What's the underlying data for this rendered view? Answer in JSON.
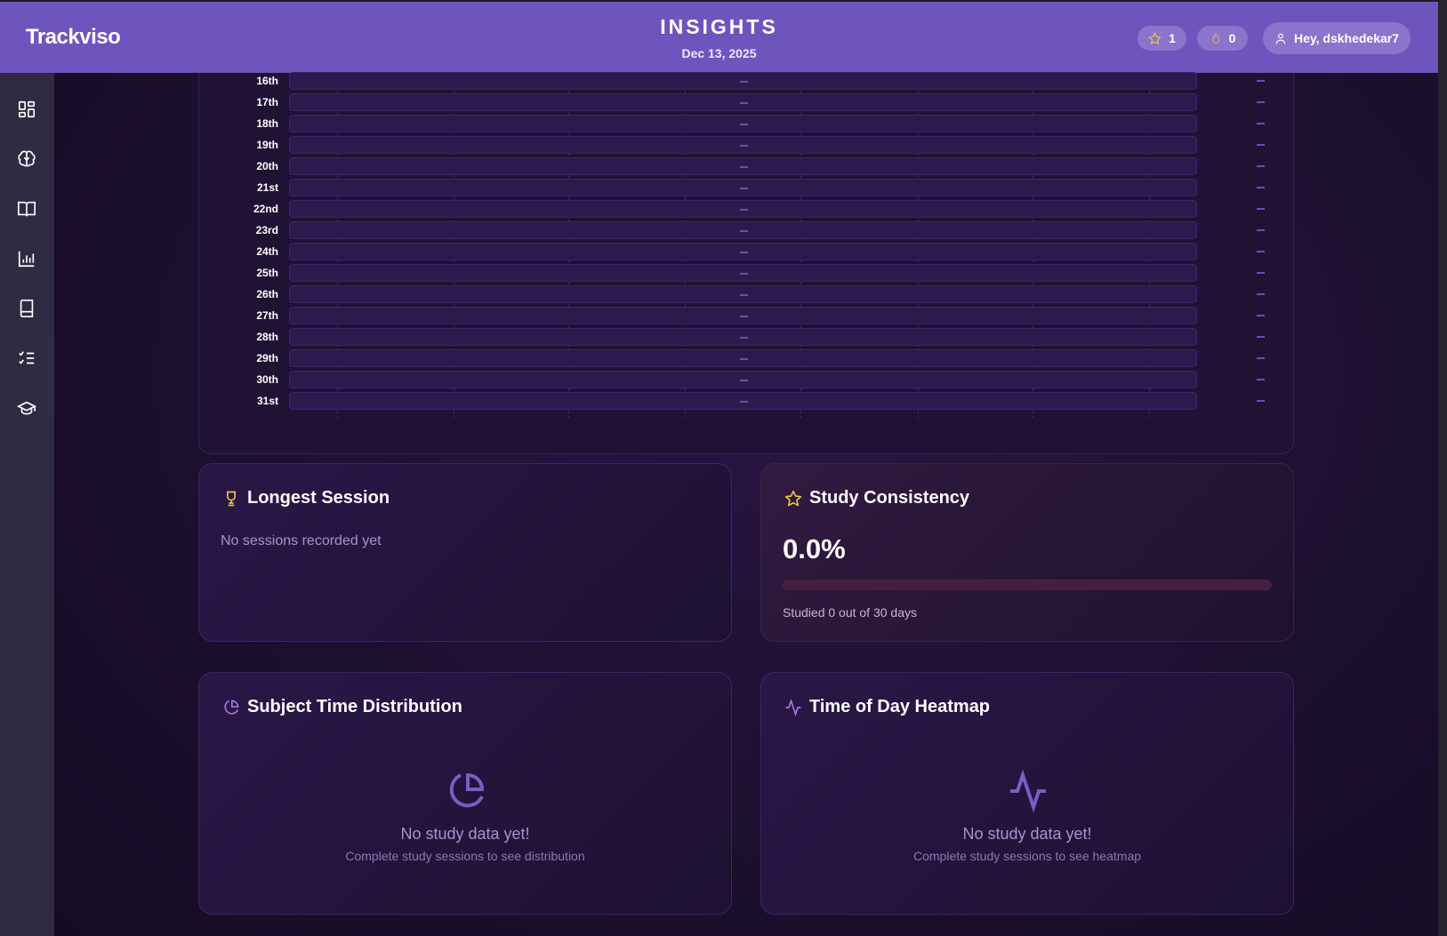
{
  "header": {
    "logo": "Trackviso",
    "title": "INSIGHTS",
    "date": "Dec 13, 2025",
    "stars": "1",
    "streak": "0",
    "greeting": "Hey, dskhedekar7"
  },
  "sidebar": {
    "items": [
      {
        "icon": "dashboard-icon"
      },
      {
        "icon": "brain-icon"
      },
      {
        "icon": "open-book-icon"
      },
      {
        "icon": "bar-chart-icon"
      },
      {
        "icon": "book-icon"
      },
      {
        "icon": "checklist-icon"
      },
      {
        "icon": "graduation-cap-icon"
      }
    ]
  },
  "daily_chart": {
    "rows": [
      {
        "day": "16th",
        "value": "—"
      },
      {
        "day": "17th",
        "value": "—"
      },
      {
        "day": "18th",
        "value": "—"
      },
      {
        "day": "19th",
        "value": "—"
      },
      {
        "day": "20th",
        "value": "—"
      },
      {
        "day": "21st",
        "value": "—"
      },
      {
        "day": "22nd",
        "value": "—"
      },
      {
        "day": "23rd",
        "value": "—"
      },
      {
        "day": "24th",
        "value": "—"
      },
      {
        "day": "25th",
        "value": "—"
      },
      {
        "day": "26th",
        "value": "—"
      },
      {
        "day": "27th",
        "value": "—"
      },
      {
        "day": "28th",
        "value": "—"
      },
      {
        "day": "29th",
        "value": "—"
      },
      {
        "day": "30th",
        "value": "—"
      },
      {
        "day": "31st",
        "value": "—"
      }
    ]
  },
  "longest_session": {
    "title": "Longest Session",
    "message": "No sessions recorded yet"
  },
  "consistency": {
    "title": "Study Consistency",
    "value": "0.0%",
    "progress_percent": 0,
    "caption": "Studied 0 out of 30 days"
  },
  "distribution": {
    "title": "Subject Time Distribution",
    "empty_title": "No study data yet!",
    "empty_sub": "Complete study sessions to see distribution"
  },
  "heatmap": {
    "title": "Time of Day Heatmap",
    "empty_title": "No study data yet!",
    "empty_sub": "Complete study sessions to see heatmap"
  },
  "colors": {
    "header": "#6e55bd",
    "accent_gold": "#e2c44a",
    "accent_purple": "#7c5cc4"
  }
}
